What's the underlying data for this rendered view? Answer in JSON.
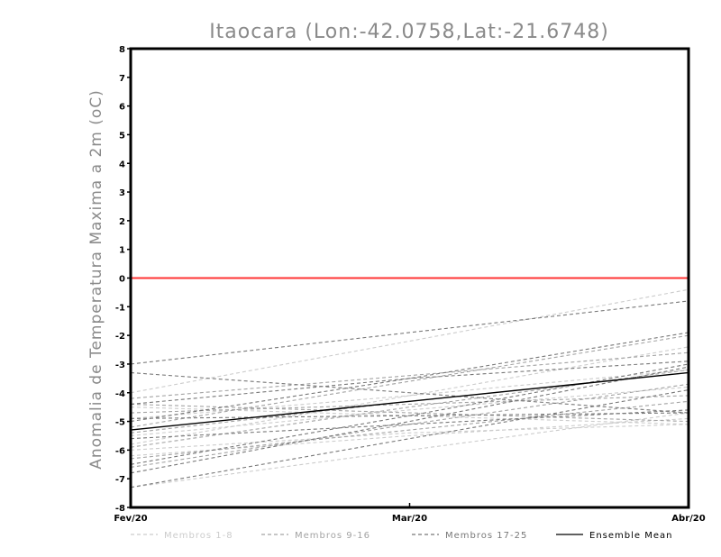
{
  "chart_data": {
    "type": "line",
    "title": "Itaocara (Lon:-42.0758,Lat:-21.6748)",
    "ylabel": "Anomalia de Temperatura Maxima a 2m (oC)",
    "xlabel": "",
    "categories": [
      "Fev/20",
      "Mar/20",
      "Abr/20"
    ],
    "ylim": [
      -8,
      8
    ],
    "yticks": [
      -8,
      -7,
      -6,
      -5,
      -4,
      -3,
      -2,
      -1,
      0,
      1,
      2,
      3,
      4,
      5,
      6,
      7,
      8
    ],
    "grid": false,
    "reference_line": {
      "y": 0,
      "color": "#ff3333"
    },
    "groups": [
      {
        "name": "Membros 1-8",
        "color": "#cccccc",
        "dash": "4,3"
      },
      {
        "name": "Membros 9-16",
        "color": "#a3a3a3",
        "dash": "4,3"
      },
      {
        "name": "Membros 17-25",
        "color": "#787878",
        "dash": "4,3"
      },
      {
        "name": "Ensemble Mean",
        "color": "#000000",
        "dash": ""
      }
    ],
    "series": [
      {
        "group": 0,
        "values": [
          -4.0,
          -2.2,
          -0.4
        ]
      },
      {
        "group": 0,
        "values": [
          -7.3,
          -6.0,
          -4.7
        ]
      },
      {
        "group": 0,
        "values": [
          -6.0,
          -5.4,
          -5.1
        ]
      },
      {
        "group": 0,
        "values": [
          -5.5,
          -4.6,
          -3.8
        ]
      },
      {
        "group": 0,
        "values": [
          -4.9,
          -4.1,
          -3.2
        ]
      },
      {
        "group": 0,
        "values": [
          -6.2,
          -5.5,
          -4.9
        ]
      },
      {
        "group": 0,
        "values": [
          -5.8,
          -4.1,
          -2.4
        ]
      },
      {
        "group": 0,
        "values": [
          -4.5,
          -4.8,
          -5.1
        ]
      },
      {
        "group": 1,
        "values": [
          -4.2,
          -3.4,
          -2.6
        ]
      },
      {
        "group": 1,
        "values": [
          -5.9,
          -4.5,
          -3.2
        ]
      },
      {
        "group": 1,
        "values": [
          -4.7,
          -4.4,
          -4.1
        ]
      },
      {
        "group": 1,
        "values": [
          -6.3,
          -5.3,
          -4.3
        ]
      },
      {
        "group": 1,
        "values": [
          -5.2,
          -3.6,
          -2.0
        ]
      },
      {
        "group": 1,
        "values": [
          -6.6,
          -5.1,
          -3.7
        ]
      },
      {
        "group": 1,
        "values": [
          -4.4,
          -4.7,
          -5.0
        ]
      },
      {
        "group": 1,
        "values": [
          -5.4,
          -4.3,
          -3.3
        ]
      },
      {
        "group": 2,
        "values": [
          -3.0,
          -1.9,
          -0.8
        ]
      },
      {
        "group": 2,
        "values": [
          -6.5,
          -4.8,
          -3.0
        ]
      },
      {
        "group": 2,
        "values": [
          -7.3,
          -5.6,
          -3.9
        ]
      },
      {
        "group": 2,
        "values": [
          -4.9,
          -4.8,
          -4.7
        ]
      },
      {
        "group": 2,
        "values": [
          -5.0,
          -3.5,
          -1.9
        ]
      },
      {
        "group": 2,
        "values": [
          -3.3,
          -4.0,
          -4.7
        ]
      },
      {
        "group": 2,
        "values": [
          -6.8,
          -5.0,
          -3.1
        ]
      },
      {
        "group": 2,
        "values": [
          -5.6,
          -5.1,
          -4.6
        ]
      },
      {
        "group": 2,
        "values": [
          -4.4,
          -3.5,
          -2.9
        ]
      },
      {
        "group": 3,
        "values": [
          -5.3,
          -4.3,
          -3.3
        ]
      }
    ]
  }
}
